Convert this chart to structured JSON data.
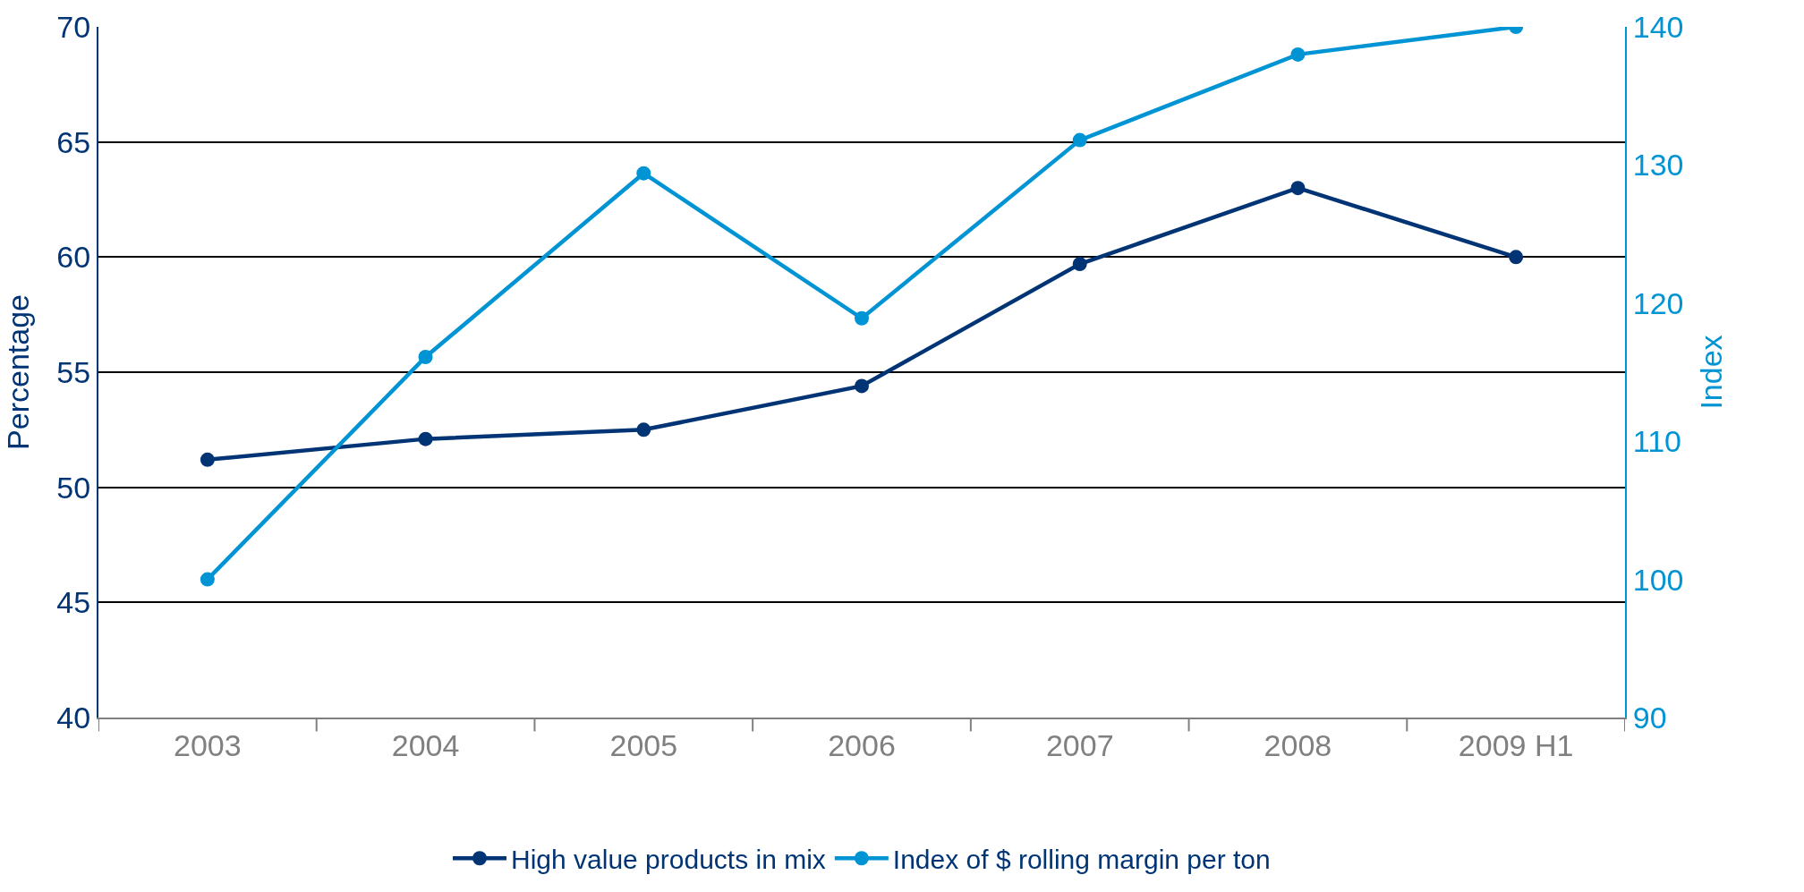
{
  "chart_data": {
    "type": "line",
    "ylabel": "Percentage",
    "y2label": "Index",
    "categories": [
      "2003",
      "2004",
      "2005",
      "2006",
      "2007",
      "2008",
      "2009 H1"
    ],
    "series": [
      {
        "name": "High value products in mix",
        "color": "#003474",
        "values": [
          51.2,
          52.1,
          52.5,
          54.4,
          59.7,
          63.0,
          60.0
        ]
      },
      {
        "name": "Index of $ rolling margin per ton",
        "color": "#0094d4",
        "axis": "y2",
        "values": [
          100,
          116.1,
          129.4,
          118.9,
          131.8,
          138.0,
          140
        ]
      }
    ],
    "ylim": [
      40,
      70
    ],
    "yticks": [
      40,
      45,
      50,
      55,
      60,
      65,
      70
    ],
    "y2lim": [
      90,
      140
    ],
    "y2ticks": [
      90,
      100,
      110,
      120,
      130,
      140
    ],
    "grid": "y",
    "legend": "bottom",
    "marker": "circle",
    "line_style": "solid"
  }
}
